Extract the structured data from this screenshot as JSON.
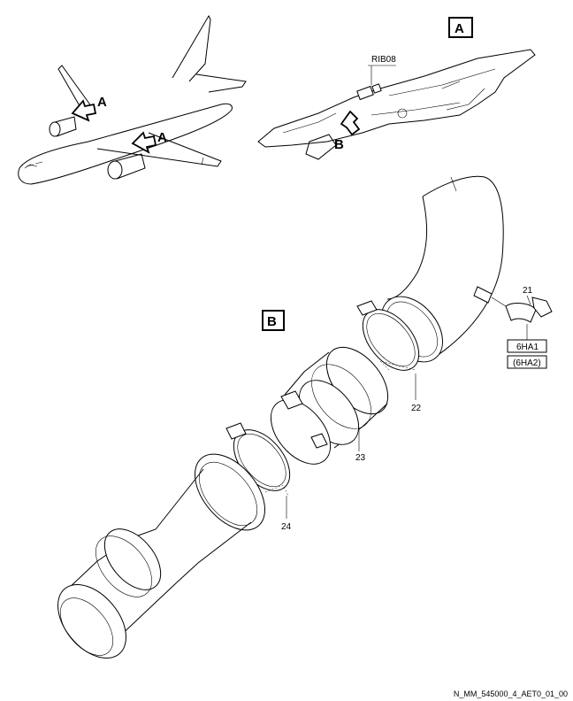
{
  "view_labels": {
    "detail_a": "A",
    "detail_b": "B",
    "arrow_a_upper": "A",
    "arrow_a_lower": "A",
    "arrow_b": "B"
  },
  "zone_label": "RIB08",
  "item_numbers": {
    "elbow_union": "21",
    "clamp_upper": "22",
    "coupling_sleeve": "23",
    "clamp_lower": "24"
  },
  "equipment_tags": {
    "primary": "6HA1",
    "alternate": "(6HA2)"
  },
  "figure_reference": "N_MM_545000_4_AET0_01_00"
}
